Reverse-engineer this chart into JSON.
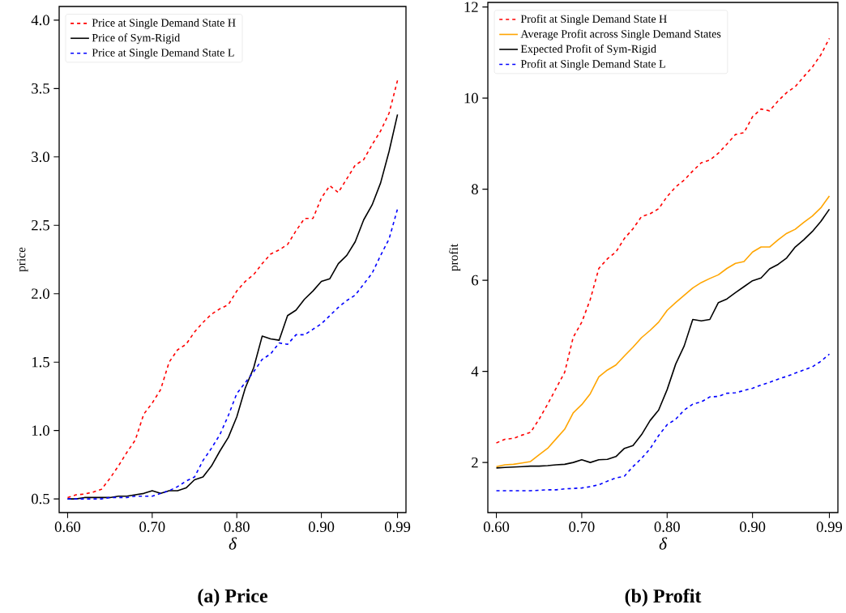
{
  "chart_data": [
    {
      "type": "line",
      "xlabel": "δ",
      "ylabel": "price",
      "annotations": [
        "(a) Price"
      ],
      "legend": "top left",
      "x": [
        0.6,
        0.61,
        0.62,
        0.63,
        0.64,
        0.65,
        0.66,
        0.67,
        0.68,
        0.69,
        0.7,
        0.71,
        0.72,
        0.73,
        0.74,
        0.75,
        0.76,
        0.77,
        0.78,
        0.79,
        0.8,
        0.81,
        0.82,
        0.83,
        0.84,
        0.85,
        0.86,
        0.87,
        0.88,
        0.89,
        0.9,
        0.91,
        0.92,
        0.93,
        0.94,
        0.95,
        0.96,
        0.97,
        0.98,
        0.99
      ],
      "xlim": [
        0.59,
        1.0
      ],
      "ylim": [
        0.4,
        4.1
      ],
      "xticks": [
        {
          "value": 0.6,
          "label": "0.60"
        },
        {
          "value": 0.7,
          "label": "0.70"
        },
        {
          "value": 0.8,
          "label": "0.80"
        },
        {
          "value": 0.9,
          "label": "0.90"
        },
        {
          "value": 0.99,
          "label": "0.99"
        }
      ],
      "yticks": [
        {
          "value": 0.5,
          "label": "0.5"
        },
        {
          "value": 1,
          "label": "1.0"
        },
        {
          "value": 1.5,
          "label": "1.5"
        },
        {
          "value": 2,
          "label": "2.0"
        },
        {
          "value": 2.5,
          "label": "2.5"
        },
        {
          "value": 3,
          "label": "3.0"
        },
        {
          "value": 3.5,
          "label": "3.5"
        },
        {
          "value": 4,
          "label": "4.0"
        }
      ],
      "series": [
        {
          "name": "Price at Single Demand State H",
          "color": "#ff0000",
          "line_style": "dashed",
          "values": [
            0.51,
            0.53,
            0.535,
            0.55,
            0.57,
            0.65,
            0.74,
            0.84,
            0.93,
            1.12,
            1.2,
            1.3,
            1.5,
            1.59,
            1.63,
            1.72,
            1.79,
            1.85,
            1.89,
            1.92,
            2.02,
            2.09,
            2.14,
            2.22,
            2.29,
            2.32,
            2.36,
            2.46,
            2.55,
            2.55,
            2.7,
            2.79,
            2.74,
            2.84,
            2.94,
            2.98,
            3.09,
            3.19,
            3.32,
            3.56
          ]
        },
        {
          "name": "Price of Sym-Rigid",
          "color": "#000000",
          "line_style": "solid",
          "values": [
            0.5,
            0.5,
            0.51,
            0.51,
            0.51,
            0.51,
            0.52,
            0.52,
            0.53,
            0.54,
            0.56,
            0.54,
            0.56,
            0.56,
            0.58,
            0.64,
            0.66,
            0.74,
            0.85,
            0.95,
            1.1,
            1.31,
            1.46,
            1.69,
            1.67,
            1.66,
            1.84,
            1.88,
            1.96,
            2.02,
            2.09,
            2.11,
            2.22,
            2.28,
            2.38,
            2.54,
            2.65,
            2.81,
            3.04,
            3.31
          ]
        },
        {
          "name": "Price at Single Demand State L",
          "color": "#0000ff",
          "line_style": "dashed",
          "values": [
            0.5,
            0.5,
            0.5,
            0.5,
            0.5,
            0.51,
            0.51,
            0.51,
            0.52,
            0.52,
            0.52,
            0.54,
            0.56,
            0.59,
            0.63,
            0.66,
            0.78,
            0.87,
            0.97,
            1.11,
            1.27,
            1.35,
            1.43,
            1.52,
            1.56,
            1.64,
            1.63,
            1.7,
            1.7,
            1.74,
            1.78,
            1.84,
            1.9,
            1.95,
            1.99,
            2.07,
            2.15,
            2.28,
            2.4,
            2.62
          ]
        }
      ]
    },
    {
      "type": "line",
      "xlabel": "δ",
      "ylabel": "profit",
      "annotations": [
        "(b) Profit"
      ],
      "legend": "top left",
      "x": [
        0.6,
        0.61,
        0.62,
        0.63,
        0.64,
        0.65,
        0.66,
        0.67,
        0.68,
        0.69,
        0.7,
        0.71,
        0.72,
        0.73,
        0.74,
        0.75,
        0.76,
        0.77,
        0.78,
        0.79,
        0.8,
        0.81,
        0.82,
        0.83,
        0.84,
        0.85,
        0.86,
        0.87,
        0.88,
        0.89,
        0.9,
        0.91,
        0.92,
        0.93,
        0.94,
        0.95,
        0.96,
        0.97,
        0.98,
        0.99
      ],
      "xlim": [
        0.59,
        1.0
      ],
      "ylim": [
        0.9,
        12.1
      ],
      "xticks": [
        {
          "value": 0.6,
          "label": "0.60"
        },
        {
          "value": 0.7,
          "label": "0.70"
        },
        {
          "value": 0.8,
          "label": "0.80"
        },
        {
          "value": 0.9,
          "label": "0.90"
        },
        {
          "value": 0.99,
          "label": "0.99"
        }
      ],
      "yticks": [
        2,
        4,
        6,
        8,
        10,
        12
      ],
      "series": [
        {
          "name": "Profit at Single Demand State H",
          "color": "#ff0000",
          "line_style": "dashed",
          "values": [
            2.43,
            2.51,
            2.53,
            2.6,
            2.66,
            2.95,
            3.28,
            3.63,
            3.98,
            4.75,
            5.08,
            5.58,
            6.26,
            6.47,
            6.62,
            6.92,
            7.13,
            7.4,
            7.46,
            7.57,
            7.84,
            8.05,
            8.2,
            8.4,
            8.58,
            8.64,
            8.79,
            8.99,
            9.2,
            9.24,
            9.59,
            9.76,
            9.72,
            9.94,
            10.12,
            10.25,
            10.47,
            10.68,
            10.95,
            11.31
          ]
        },
        {
          "name": "Average Profit across Single Demand States",
          "color": "#ffa500",
          "line_style": "solid",
          "values": [
            1.91,
            1.95,
            1.96,
            1.99,
            2.02,
            2.17,
            2.31,
            2.52,
            2.73,
            3.09,
            3.27,
            3.51,
            3.88,
            4.03,
            4.14,
            4.34,
            4.53,
            4.74,
            4.9,
            5.08,
            5.34,
            5.51,
            5.67,
            5.83,
            5.95,
            6.04,
            6.12,
            6.26,
            6.37,
            6.41,
            6.62,
            6.73,
            6.73,
            6.89,
            7.03,
            7.12,
            7.27,
            7.41,
            7.59,
            7.85
          ]
        },
        {
          "name": "Expected Profit of Sym-Rigid",
          "color": "#000000",
          "line_style": "solid",
          "values": [
            1.88,
            1.89,
            1.9,
            1.91,
            1.92,
            1.92,
            1.93,
            1.95,
            1.96,
            2.0,
            2.06,
            2.0,
            2.06,
            2.07,
            2.13,
            2.31,
            2.37,
            2.61,
            2.92,
            3.15,
            3.6,
            4.16,
            4.56,
            5.14,
            5.11,
            5.14,
            5.51,
            5.59,
            5.73,
            5.86,
            5.99,
            6.05,
            6.25,
            6.35,
            6.49,
            6.73,
            6.89,
            7.07,
            7.29,
            7.56
          ]
        },
        {
          "name": "Profit at Single Demand State L",
          "color": "#0000ff",
          "line_style": "dashed",
          "values": [
            1.38,
            1.38,
            1.38,
            1.38,
            1.38,
            1.39,
            1.4,
            1.4,
            1.42,
            1.43,
            1.44,
            1.47,
            1.51,
            1.59,
            1.66,
            1.7,
            1.91,
            2.09,
            2.3,
            2.59,
            2.83,
            2.95,
            3.15,
            3.28,
            3.33,
            3.44,
            3.45,
            3.52,
            3.53,
            3.58,
            3.63,
            3.7,
            3.76,
            3.83,
            3.89,
            3.96,
            4.03,
            4.1,
            4.22,
            4.38
          ]
        }
      ]
    }
  ]
}
